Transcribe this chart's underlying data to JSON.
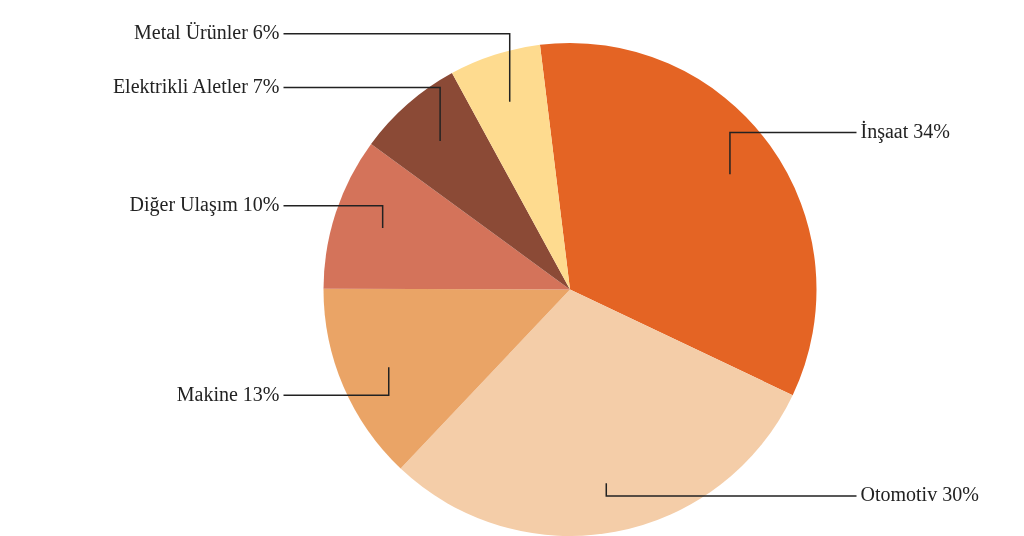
{
  "chart_data": {
    "type": "pie",
    "categories": [
      "İnşaat",
      "Otomotiv",
      "Makine",
      "Diğer Ulaşım",
      "Elektrikli Aletler",
      "Metal Ürünler"
    ],
    "values": [
      34,
      30,
      13,
      10,
      7,
      6
    ],
    "value_labels": [
      "34%",
      "30%",
      "13%",
      "10%",
      "7%",
      "6%"
    ],
    "colors": [
      "#e46424",
      "#f4cda8",
      "#eaa466",
      "#d4735a",
      "#8b4a36",
      "#fedb8f"
    ],
    "legend": false
  }
}
